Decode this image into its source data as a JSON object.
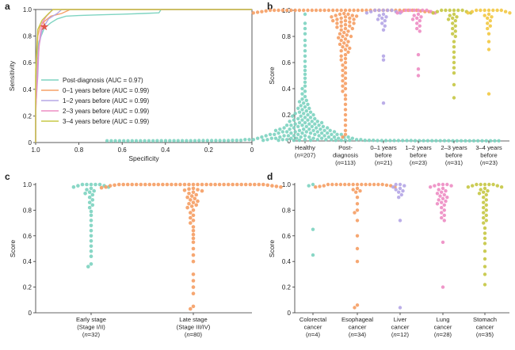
{
  "colors": {
    "teal": "#7fd4c1",
    "orange": "#f5a066",
    "lavender": "#b5a7e6",
    "pink": "#ee8ec4",
    "olive": "#c7c846",
    "yellow": "#f2c945",
    "star": "#e0574a",
    "axis": "#333333"
  },
  "chart_data": [
    {
      "panel": "a",
      "type": "line",
      "xlabel": "Specificity",
      "ylabel": "Sensitivity",
      "xlim": [
        1.0,
        0
      ],
      "ylim": [
        0,
        1.0
      ],
      "xticks": [
        "1.0",
        "0.8",
        "0.6",
        "0.4",
        "0.2",
        "0"
      ],
      "yticks": [
        "0",
        "0.2",
        "0.4",
        "0.6",
        "0.8",
        "1.0"
      ],
      "grid": false,
      "legend": "bottom-left",
      "marker": {
        "label": "",
        "specificity": 0.96,
        "sensitivity": 0.87
      },
      "series": [
        {
          "name": "Post-diagnosis (AUC = 0.97)",
          "color": "teal",
          "points": [
            [
              1.0,
              0
            ],
            [
              1.0,
              0.3
            ],
            [
              0.995,
              0.6
            ],
            [
              0.99,
              0.7
            ],
            [
              0.985,
              0.76
            ],
            [
              0.97,
              0.82
            ],
            [
              0.96,
              0.86
            ],
            [
              0.93,
              0.9
            ],
            [
              0.9,
              0.93
            ],
            [
              0.86,
              0.95
            ],
            [
              0.8,
              0.955
            ],
            [
              0.7,
              0.96
            ],
            [
              0.6,
              0.965
            ],
            [
              0.5,
              0.97
            ],
            [
              0.43,
              0.975
            ],
            [
              0.42,
              1.0
            ],
            [
              0,
              1.0
            ]
          ]
        },
        {
          "name": "0–1 years before (AUC = 0.99)",
          "color": "orange",
          "points": [
            [
              1.0,
              0
            ],
            [
              1.0,
              0.5
            ],
            [
              0.99,
              0.8
            ],
            [
              0.98,
              0.87
            ],
            [
              0.96,
              0.91
            ],
            [
              0.93,
              0.95
            ],
            [
              0.88,
              0.97
            ],
            [
              0.84,
              1.0
            ],
            [
              0,
              1.0
            ]
          ]
        },
        {
          "name": "1–2 years before (AUC = 0.99)",
          "color": "lavender",
          "points": [
            [
              1.0,
              0
            ],
            [
              1.0,
              0.25
            ],
            [
              0.99,
              0.5
            ],
            [
              0.985,
              0.72
            ],
            [
              0.97,
              0.85
            ],
            [
              0.94,
              0.93
            ],
            [
              0.9,
              0.97
            ],
            [
              0.88,
              1.0
            ],
            [
              0,
              1.0
            ]
          ]
        },
        {
          "name": "2–3 years before (AUC = 0.99)",
          "color": "pink",
          "points": [
            [
              1.0,
              0
            ],
            [
              1.0,
              0.2
            ],
            [
              0.99,
              0.6
            ],
            [
              0.98,
              0.8
            ],
            [
              0.97,
              0.9
            ],
            [
              0.95,
              0.95
            ],
            [
              0.92,
              1.0
            ],
            [
              0,
              1.0
            ]
          ]
        },
        {
          "name": "3–4 years before (AUC = 0.99)",
          "color": "olive",
          "points": [
            [
              1.0,
              0
            ],
            [
              1.0,
              0.55
            ],
            [
              0.99,
              0.85
            ],
            [
              0.97,
              0.92
            ],
            [
              0.94,
              0.97
            ],
            [
              0.92,
              1.0
            ],
            [
              0,
              1.0
            ]
          ]
        }
      ]
    },
    {
      "panel": "b",
      "type": "scatter",
      "ylabel": "Score",
      "ylim": [
        0,
        1.0
      ],
      "yticks": [
        "0",
        "0.2",
        "0.4",
        "0.6",
        "0.8",
        "1.0"
      ],
      "groups": [
        {
          "label": [
            "Healthy",
            "(n=207)"
          ],
          "color": "teal",
          "n": 207,
          "values": [
            0.97,
            0.9,
            0.86,
            0.82,
            0.77,
            0.73,
            0.69,
            0.65,
            0.61,
            0.57,
            0.54,
            0.51,
            0.48,
            0.45,
            0.42,
            0.4,
            0.38,
            0.36,
            0.34,
            0.32,
            0.31,
            0.3,
            0.29,
            0.28,
            0.27,
            0.26,
            0.25,
            0.25,
            0.24,
            0.23,
            0.22,
            0.22,
            0.21,
            0.21,
            0.2,
            0.2,
            0.19,
            0.19,
            0.18,
            0.18,
            0.17,
            0.17,
            0.16,
            0.16,
            0.16,
            0.15,
            0.15,
            0.15,
            0.14,
            0.14,
            0.14,
            0.13,
            0.13,
            0.13,
            0.12,
            0.12,
            0.12,
            0.12,
            0.11,
            0.11,
            0.11,
            0.11,
            0.1,
            0.1,
            0.1,
            0.1,
            0.09,
            0.09,
            0.09,
            0.09,
            0.09,
            0.08,
            0.08,
            0.08,
            0.08,
            0.08,
            0.07,
            0.07,
            0.07,
            0.07,
            0.07,
            0.07,
            0.06,
            0.06,
            0.06,
            0.06,
            0.06,
            0.06,
            0.05,
            0.05,
            0.05,
            0.05,
            0.05,
            0.05,
            0.05,
            0.04,
            0.04,
            0.04,
            0.04,
            0.04,
            0.04,
            0.04,
            0.03,
            0.03,
            0.03,
            0.03,
            0.03,
            0.03,
            0.03,
            0.03,
            0.02,
            0.02,
            0.02,
            0.02,
            0.02,
            0.02,
            0.02,
            0.02,
            0.02,
            0.01,
            0.01,
            0.01,
            0.01,
            0.01,
            0.01,
            0.01,
            0.01,
            0.01,
            0.01,
            0.01,
            0.01,
            0.005,
            0.005,
            0.005,
            0.005,
            0.005,
            0.005,
            0.005,
            0.005,
            0.005,
            0.005,
            0.005,
            0.005,
            0.005,
            0.005,
            0.005,
            0.003,
            0.003,
            0.003,
            0.003,
            0.003,
            0.003,
            0.003,
            0.003,
            0.003,
            0.003,
            0.003,
            0.003,
            0.003,
            0.003,
            0.003,
            0.003,
            0.003,
            0.002,
            0.002,
            0.002,
            0.002,
            0.002,
            0.002,
            0.002,
            0.002,
            0.002,
            0.002,
            0.002,
            0.002,
            0.002,
            0.002,
            0.002,
            0.002,
            0.002,
            0.002,
            0.002,
            0.001,
            0.001,
            0.001,
            0.001,
            0.001,
            0.001,
            0.001,
            0.001,
            0.001,
            0.001,
            0.001,
            0.001,
            0.001,
            0.001,
            0.001,
            0.001,
            0.001,
            0.001,
            0.001,
            0.001,
            0.001,
            0.001,
            0.001,
            0.001
          ]
        },
        {
          "label": [
            "Post-",
            "diagnosis",
            "(n=113)"
          ],
          "color": "orange",
          "n": 113,
          "values": [
            1,
            1,
            1,
            1,
            1,
            1,
            1,
            1,
            1,
            1,
            1,
            1,
            1,
            1,
            1,
            1,
            1,
            1,
            1,
            1,
            1,
            1,
            1,
            1,
            1,
            1,
            1,
            1,
            1,
            1,
            1,
            1,
            1,
            1,
            1,
            1,
            0.995,
            0.995,
            0.99,
            0.99,
            0.99,
            0.985,
            0.98,
            0.98,
            0.975,
            0.97,
            0.97,
            0.96,
            0.96,
            0.955,
            0.95,
            0.95,
            0.94,
            0.94,
            0.93,
            0.93,
            0.92,
            0.92,
            0.91,
            0.91,
            0.9,
            0.9,
            0.89,
            0.88,
            0.88,
            0.87,
            0.86,
            0.86,
            0.85,
            0.84,
            0.83,
            0.82,
            0.81,
            0.8,
            0.8,
            0.79,
            0.78,
            0.77,
            0.76,
            0.75,
            0.74,
            0.73,
            0.72,
            0.71,
            0.7,
            0.69,
            0.68,
            0.66,
            0.65,
            0.63,
            0.62,
            0.6,
            0.58,
            0.56,
            0.54,
            0.52,
            0.5,
            0.48,
            0.46,
            0.44,
            0.42,
            0.4,
            0.38,
            0.35,
            0.32,
            0.28,
            0.24,
            0.2,
            0.16,
            0.12,
            0.08,
            0.05,
            0.03
          ]
        },
        {
          "label": [
            "0–1 years",
            "before",
            "(n=21)"
          ],
          "color": "lavender",
          "n": 21,
          "values": [
            1,
            1,
            1,
            1,
            1,
            0.99,
            0.99,
            0.98,
            0.98,
            0.97,
            0.96,
            0.95,
            0.94,
            0.93,
            0.92,
            0.9,
            0.88,
            0.85,
            0.65,
            0.62,
            0.29
          ]
        },
        {
          "label": [
            "1–2 years",
            "before",
            "(n=23)"
          ],
          "color": "pink",
          "n": 23,
          "values": [
            1,
            1,
            1,
            1,
            1,
            1,
            0.99,
            0.99,
            0.98,
            0.98,
            0.97,
            0.96,
            0.95,
            0.94,
            0.93,
            0.92,
            0.9,
            0.88,
            0.86,
            0.84,
            0.66,
            0.55,
            0.5
          ]
        },
        {
          "label": [
            "2–3 years",
            "before",
            "(n=31)"
          ],
          "color": "olive",
          "n": 31,
          "values": [
            1,
            1,
            1,
            1,
            1,
            1,
            0.99,
            0.99,
            0.98,
            0.98,
            0.97,
            0.96,
            0.95,
            0.94,
            0.93,
            0.92,
            0.9,
            0.88,
            0.86,
            0.84,
            0.82,
            0.8,
            0.76,
            0.72,
            0.68,
            0.64,
            0.6,
            0.56,
            0.52,
            0.43,
            0.33
          ]
        },
        {
          "label": [
            "3–4 years",
            "before",
            "(n=23)"
          ],
          "color": "yellow",
          "n": 23,
          "values": [
            1,
            1,
            1,
            1,
            1,
            1,
            1,
            0.99,
            0.99,
            0.98,
            0.98,
            0.97,
            0.96,
            0.95,
            0.94,
            0.92,
            0.9,
            0.88,
            0.86,
            0.82,
            0.76,
            0.7,
            0.36
          ]
        }
      ]
    },
    {
      "panel": "c",
      "type": "scatter",
      "ylabel": "Score",
      "ylim": [
        0,
        1.0
      ],
      "yticks": [
        "0",
        "0.2",
        "0.4",
        "0.6",
        "0.8",
        "1.0"
      ],
      "groups": [
        {
          "label": [
            "Early stage",
            "(Stage I/II)",
            "(n=32)"
          ],
          "color": "teal",
          "n": 32,
          "values": [
            1,
            1,
            1,
            1,
            1,
            0.99,
            0.99,
            0.98,
            0.98,
            0.97,
            0.96,
            0.95,
            0.94,
            0.93,
            0.92,
            0.9,
            0.88,
            0.86,
            0.84,
            0.82,
            0.79,
            0.76,
            0.72,
            0.68,
            0.64,
            0.6,
            0.56,
            0.52,
            0.48,
            0.44,
            0.38,
            0.36
          ]
        },
        {
          "label": [
            "Late stage",
            "(Stage III/IV)",
            "(n=80)"
          ],
          "color": "orange",
          "n": 80,
          "values": [
            1,
            1,
            1,
            1,
            1,
            1,
            1,
            1,
            1,
            1,
            1,
            1,
            1,
            1,
            1,
            1,
            1,
            1,
            1,
            1,
            1,
            1,
            1,
            1,
            1,
            1,
            1,
            1,
            1,
            1,
            1,
            1,
            1,
            1,
            0.995,
            0.995,
            0.99,
            0.99,
            0.985,
            0.98,
            0.98,
            0.975,
            0.97,
            0.965,
            0.96,
            0.955,
            0.95,
            0.94,
            0.93,
            0.92,
            0.91,
            0.9,
            0.89,
            0.88,
            0.87,
            0.86,
            0.85,
            0.84,
            0.83,
            0.82,
            0.8,
            0.78,
            0.76,
            0.74,
            0.72,
            0.7,
            0.67,
            0.64,
            0.61,
            0.58,
            0.55,
            0.5,
            0.45,
            0.4,
            0.3,
            0.25,
            0.2,
            0.15,
            0.05,
            0.03
          ]
        }
      ]
    },
    {
      "panel": "d",
      "type": "scatter",
      "ylabel": "Score",
      "ylim": [
        0,
        1.0
      ],
      "yticks": [
        "0",
        "0.2",
        "0.4",
        "0.6",
        "0.8",
        "1.0"
      ],
      "groups": [
        {
          "label": [
            "Colorectal",
            "cancer",
            "(n=4)"
          ],
          "color": "teal",
          "n": 4,
          "values": [
            1,
            0.99,
            0.65,
            0.45
          ]
        },
        {
          "label": [
            "Esophageal",
            "cancer",
            "(n=34)"
          ],
          "color": "orange",
          "n": 34,
          "values": [
            1,
            1,
            1,
            1,
            1,
            1,
            1,
            1,
            1,
            1,
            1,
            1,
            1,
            1,
            0.995,
            0.99,
            0.99,
            0.985,
            0.98,
            0.98,
            0.97,
            0.96,
            0.95,
            0.94,
            0.9,
            0.85,
            0.8,
            0.78,
            0.72,
            0.6,
            0.5,
            0.4,
            0.06,
            0.04
          ]
        },
        {
          "label": [
            "Liver",
            "cancer",
            "(n=12)"
          ],
          "color": "lavender",
          "n": 12,
          "values": [
            1,
            1,
            0.99,
            0.98,
            0.97,
            0.96,
            0.95,
            0.94,
            0.92,
            0.9,
            0.72,
            0.04
          ]
        },
        {
          "label": [
            "Lung",
            "cancer",
            "(n=28)"
          ],
          "color": "pink",
          "n": 28,
          "values": [
            1,
            1,
            1,
            0.99,
            0.99,
            0.98,
            0.97,
            0.96,
            0.95,
            0.94,
            0.93,
            0.92,
            0.91,
            0.9,
            0.89,
            0.88,
            0.87,
            0.86,
            0.85,
            0.84,
            0.82,
            0.8,
            0.78,
            0.76,
            0.74,
            0.72,
            0.55,
            0.2
          ]
        },
        {
          "label": [
            "Stomach",
            "cancer",
            "(n=35)"
          ],
          "color": "olive",
          "n": 35,
          "values": [
            1,
            1,
            1,
            1,
            1,
            0.99,
            0.99,
            0.98,
            0.98,
            0.97,
            0.96,
            0.95,
            0.94,
            0.93,
            0.92,
            0.9,
            0.88,
            0.86,
            0.84,
            0.82,
            0.8,
            0.78,
            0.76,
            0.74,
            0.72,
            0.7,
            0.66,
            0.62,
            0.58,
            0.54,
            0.48,
            0.42,
            0.36,
            0.3,
            0.22
          ]
        }
      ]
    }
  ]
}
